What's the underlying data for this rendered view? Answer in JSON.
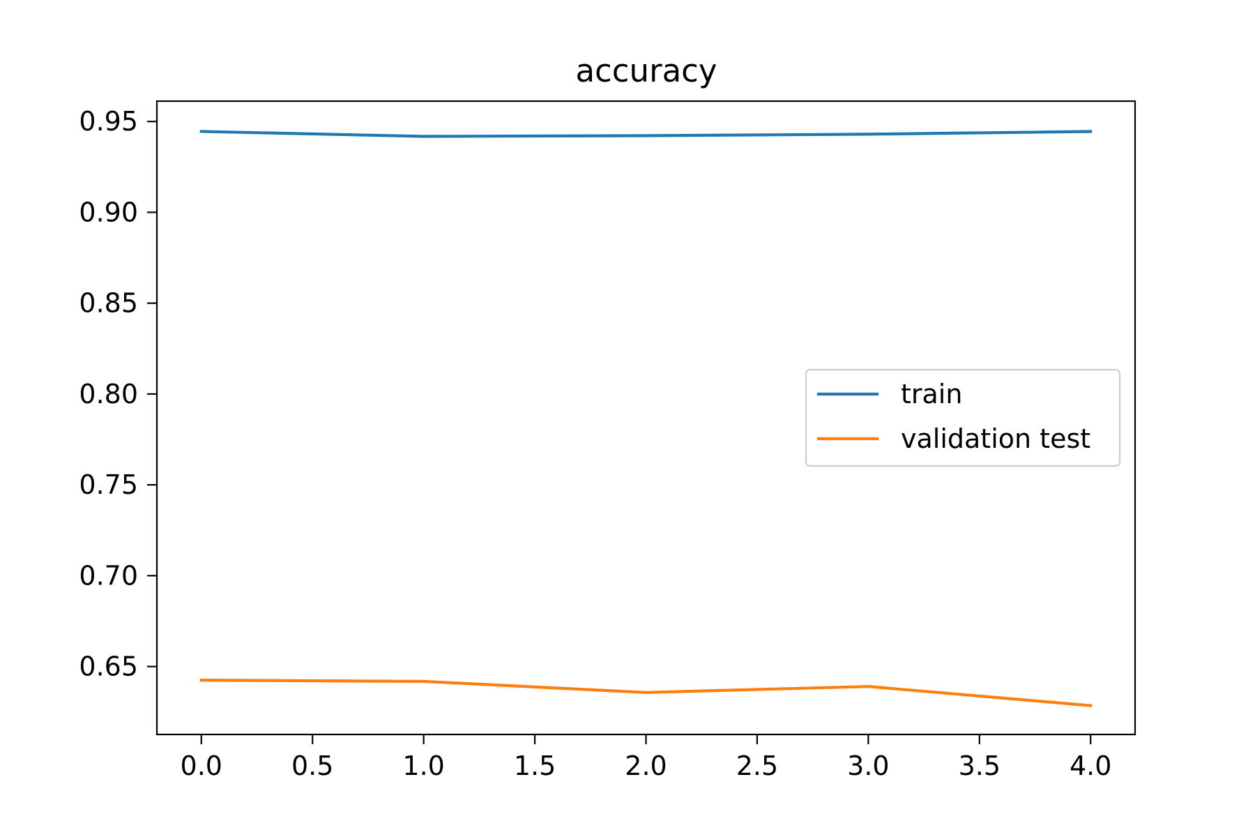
{
  "chart_data": {
    "type": "line",
    "title": "accuracy",
    "xlabel": "",
    "ylabel": "",
    "x": [
      0,
      1,
      2,
      3,
      4
    ],
    "series": [
      {
        "name": "train",
        "color": "#1f77b4",
        "values": [
          0.9445,
          0.9418,
          0.9422,
          0.943,
          0.9445
        ]
      },
      {
        "name": "validation test",
        "color": "#ff7f0e",
        "values": [
          0.6425,
          0.6418,
          0.6357,
          0.639,
          0.6285
        ]
      }
    ],
    "xlim": [
      -0.2,
      4.2
    ],
    "ylim": [
      0.6126,
      0.9612
    ],
    "xticks": [
      0.0,
      0.5,
      1.0,
      1.5,
      2.0,
      2.5,
      3.0,
      3.5,
      4.0
    ],
    "xtick_labels": [
      "0.0",
      "0.5",
      "1.0",
      "1.5",
      "2.0",
      "2.5",
      "3.0",
      "3.5",
      "4.0"
    ],
    "yticks": [
      0.65,
      0.7,
      0.75,
      0.8,
      0.85,
      0.9,
      0.95
    ],
    "ytick_labels": [
      "0.65",
      "0.70",
      "0.75",
      "0.80",
      "0.85",
      "0.90",
      "0.95"
    ],
    "grid": false,
    "legend_position": "center-right"
  }
}
